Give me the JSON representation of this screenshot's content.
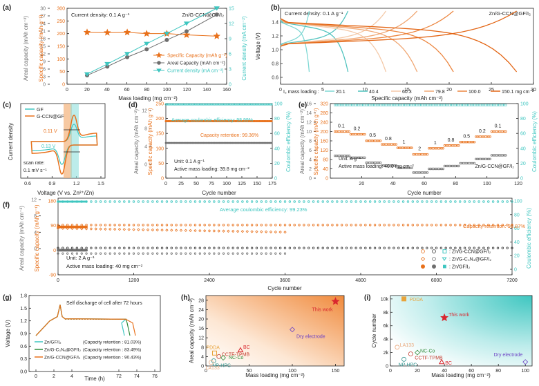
{
  "colors": {
    "orange": "#E8701A",
    "teal": "#3EC6C0",
    "gray": "#6E6E6E",
    "dark": "#333333",
    "red": "#D9272E",
    "purple": "#6B3FC4",
    "green": "#2E8B3A",
    "gold": "#E8A33A"
  },
  "chart_data": [
    {
      "panel": "(a)",
      "type": "line",
      "title": "Current density: 0.1 A g⁻¹",
      "subtitle": "Zn/G-CCN@GF/I₂",
      "xlabel": "Mass loading (mg cm⁻²)",
      "ylabel": "Areal capacity (mAh cm⁻²)",
      "ylabel2": "Specific capacity (mAh g⁻¹)",
      "ylabel3": "Current density (mA cm⁻²)",
      "xlim": [
        0,
        160
      ],
      "ylim": [
        0,
        30
      ],
      "ylim2": [
        0,
        300
      ],
      "ylim3": [
        0,
        15
      ],
      "xticks": [
        "0",
        "20",
        "40",
        "60",
        "80",
        "100",
        "120",
        "140",
        "160"
      ],
      "yticks": [
        "0",
        "3",
        "6",
        "9",
        "12",
        "15",
        "18",
        "21",
        "24",
        "27",
        "30"
      ],
      "yticks2": [
        "0",
        "50",
        "100",
        "150",
        "200",
        "250",
        "300"
      ],
      "yticks3": [
        "0",
        "3",
        "6",
        "9",
        "12",
        "15"
      ],
      "x": [
        20.1,
        40.4,
        60.3,
        79.8,
        100.0,
        119.8,
        150.1
      ],
      "series": [
        {
          "name": "Specific Capacity (mAh g⁻¹)",
          "axis": "y2",
          "values": [
            205,
            204,
            205,
            200,
            200,
            195,
            190
          ]
        },
        {
          "name": "Areal Capacity (mAh cm⁻²)",
          "axis": "y",
          "values": [
            3.5,
            7.0,
            10.7,
            13.8,
            17.5,
            20.9,
            27.5
          ]
        },
        {
          "name": "Current density (mA cm⁻²)",
          "axis": "y3",
          "values": [
            2.0,
            4.0,
            6.0,
            8.0,
            10.0,
            12.0,
            15.0
          ]
        }
      ]
    },
    {
      "panel": "(b)",
      "type": "line",
      "title": "Current density: 0.1 A g⁻¹",
      "subtitle": "Zn/G-CCN@GF/I₂",
      "xlabel": "Specific capacity (mAh cm⁻²)",
      "ylabel": "Voltage (V)",
      "xlim": [
        0,
        30
      ],
      "ylim": [
        0.5,
        1.6
      ],
      "xticks": [
        "0",
        "5",
        "10",
        "15",
        "20",
        "25",
        "30"
      ],
      "yticks": [
        "0.6",
        "0.8",
        "1.0",
        "1.2",
        "1.4"
      ],
      "legend_title": "I₂ mass loading :",
      "series": [
        {
          "name": "20.1",
          "capacity": 3.4
        },
        {
          "name": "40.4",
          "capacity": 8.0
        },
        {
          "name": "60.3",
          "capacity": 12.5
        },
        {
          "name": "79.8",
          "capacity": 16.2
        },
        {
          "name": "100.0",
          "capacity": 20.5
        },
        {
          "name": "150.1 mg cm⁻²",
          "capacity": 28.0
        }
      ]
    },
    {
      "panel": "(c)",
      "type": "line",
      "xlabel": "Voltage (V vs. Zn²⁺/Zn)",
      "ylabel": "Current density",
      "xlim": [
        0.6,
        1.6
      ],
      "xticks": [
        "0.6",
        "0.9",
        "1.2",
        "1.5"
      ],
      "legend": [
        "GF",
        "G-CCN@GF"
      ],
      "annotations": [
        "0.11 V",
        "0.13 V",
        "scan rate:",
        "0.1 mV s⁻¹"
      ],
      "peaks": {
        "oxidation_V": 1.23,
        "reduction_V": 1.07
      }
    },
    {
      "panel": "(d)",
      "type": "line",
      "xlabel": "Cycle number",
      "ylabel": "Areal capacity (mAh cm⁻²)",
      "ylabel2": "Specific capacity (mAh g⁻¹)",
      "ylabel3": "Coulombic efficiency (%)",
      "xlim": [
        0,
        175
      ],
      "ylim2": [
        0,
        250
      ],
      "ylim3": [
        0,
        100
      ],
      "xticks": [
        "0",
        "25",
        "50",
        "75",
        "100",
        "125",
        "150",
        "175"
      ],
      "yticks": [
        "0",
        "4",
        "8",
        "12"
      ],
      "yticks2": [
        "0",
        "50",
        "100",
        "150",
        "200",
        "250"
      ],
      "yticks3": [
        "0",
        "20",
        "40",
        "60",
        "80",
        "100"
      ],
      "annotations": [
        "Average coulombic efficiency: 98.99%",
        "Capacity retention: 99.36%",
        "Unit: 0.1 A g⁻¹",
        "Active mass loading: 39.8 mg cm⁻²"
      ],
      "series": [
        {
          "name": "Specific capacity",
          "flat_value": 191
        },
        {
          "name": "Areal capacity",
          "flat_value": 7.6
        },
        {
          "name": "Coulombic efficiency",
          "flat_value": 99
        }
      ]
    },
    {
      "panel": "(e)",
      "type": "scatter",
      "xlabel": "Cycle number",
      "ylabel": "Areal capacity (mAh cm⁻²)",
      "ylabel2": "Specific capacity (mAh g⁻¹)",
      "ylabel3": "Coulombic efficiency (%)",
      "xlim": [
        0,
        120
      ],
      "ylim": [
        0,
        16
      ],
      "ylim2": [
        0,
        320
      ],
      "ylim3": [
        0,
        100
      ],
      "xticks": [
        "20",
        "40",
        "60",
        "80",
        "100",
        "120"
      ],
      "yticks": [
        "0",
        "2",
        "4",
        "6",
        "8",
        "10",
        "12",
        "14",
        "16"
      ],
      "yticks2": [
        "0",
        "40",
        "80",
        "120",
        "160",
        "200",
        "240",
        "280",
        "320"
      ],
      "yticks3": [
        "0",
        "20",
        "40",
        "60",
        "80",
        "100"
      ],
      "annotations": [
        "Unit: A g⁻¹",
        "Active mass loading: 40.0 mg cm⁻²",
        "Zn/G-CCN@GF/I₂"
      ],
      "rate_labels": [
        "0.1",
        "0.2",
        "0.5",
        "0.8",
        "1",
        "2",
        "1",
        "0.8",
        "0.5",
        "0.2",
        "0.1"
      ],
      "rate_specific_capacity": [
        200,
        188,
        160,
        145,
        130,
        102,
        128,
        140,
        155,
        178,
        200
      ],
      "rate_areal_capacity": [
        4.8,
        4.4,
        3.3,
        2.7,
        2.2,
        1.2,
        2.0,
        2.6,
        3.2,
        4.1,
        4.9
      ]
    },
    {
      "panel": "(f)",
      "type": "scatter",
      "xlabel": "Cycle number",
      "ylabel": "Areal capacity (mAh cm⁻²)",
      "ylabel2": "Specific capacity (mAh g⁻¹)",
      "ylabel3": "Coulombic efficiency (%)",
      "xlim": [
        0,
        7200
      ],
      "xticks": [
        "0",
        "1200",
        "2400",
        "3600",
        "4800",
        "6000",
        "7200"
      ],
      "yticks": [
        "0",
        "4",
        "8",
        "12"
      ],
      "yticks2": [
        "-90",
        "0",
        "90",
        "180"
      ],
      "yticks3": [
        "0",
        "20",
        "40",
        "60",
        "80",
        "100"
      ],
      "annotations": [
        "Average coulombic efficiency: 99.23%",
        "Capacity retention: 98.87%",
        "Unit: 2 A g⁻¹",
        "Active mass loading: 40 mg cm⁻²"
      ],
      "legend": [
        ": Zn/G-CCN@GF/I₂",
        ": Zn/G-C₃N₄@GF/I₂",
        ": Zn/GF/I₂"
      ],
      "series": [
        {
          "name": "Zn/G-CCN@GF/I₂",
          "last_cycle": 7200,
          "specific_capacity": 92,
          "areal_capacity": 3.7
        },
        {
          "name": "Zn/G-C₃N₄@GF/I₂",
          "last_cycle": 3600,
          "specific_capacity": 80,
          "areal_capacity": 3.3
        },
        {
          "name": "Zn/GF/I₂",
          "last_cycle": 450,
          "specific_capacity": 85,
          "areal_capacity": 3.4
        }
      ]
    },
    {
      "panel": "(g)",
      "type": "line",
      "title": "Self discharge of cell after 72 hours",
      "xlabel": "Time (h)",
      "ylabel": "Voltage (V)",
      "ylim": [
        0.0,
        1.8
      ],
      "xticks": [
        "0",
        "2",
        "4",
        "72",
        "74",
        "76"
      ],
      "yticks": [
        "0.0",
        "0.3",
        "0.6",
        "0.9",
        "1.2",
        "1.5",
        "1.8"
      ],
      "series": [
        {
          "name": "Zn/GF/I₂",
          "retention": "(Capacity retention : 81.03%)"
        },
        {
          "name": "Zn/G-C₃N₄@GF/I₂",
          "retention": "(Capacity retention : 83.49%)"
        },
        {
          "name": "Zn/G-CCN@GF/I₂",
          "retention": "(Capacity retention : 90.43%)"
        }
      ]
    },
    {
      "panel": "(h)",
      "type": "scatter",
      "xlabel": "Mass loading (mg cm⁻²)",
      "ylabel": "Areal capacity (mAh cm⁻²)",
      "xlim": [
        0,
        160
      ],
      "ylim": [
        0,
        30
      ],
      "xticks": [
        "0",
        "50",
        "100",
        "150"
      ],
      "yticks": [
        "0",
        "4",
        "8",
        "12",
        "16",
        "20",
        "24",
        "28"
      ],
      "points": [
        {
          "label": "This work",
          "x": 150,
          "y": 27.5
        },
        {
          "label": "Dry electrode",
          "x": 100,
          "y": 15.5
        },
        {
          "label": "BC",
          "x": 40,
          "y": 6.8
        },
        {
          "label": "PDDA",
          "x": 10,
          "y": 5.5
        },
        {
          "label": "CCTF-TPMB",
          "x": 15,
          "y": 4.0
        },
        {
          "label": "NC-Co",
          "x": 20,
          "y": 3.5
        },
        {
          "label": "NP-HPC",
          "x": 9,
          "y": 2.2
        },
        {
          "label": "LA133",
          "x": 6,
          "y": 1.5
        }
      ]
    },
    {
      "panel": "(i)",
      "type": "scatter",
      "xlabel": "Mass loading (mg cm⁻²)",
      "ylabel": "Cycle number",
      "xlim": [
        0,
        105
      ],
      "ylim": [
        0,
        10500
      ],
      "xticks": [
        "0",
        "20",
        "40",
        "60",
        "80",
        "100"
      ],
      "yticks": [
        "0",
        "2k",
        "4k",
        "6k",
        "8k",
        "10k"
      ],
      "points": [
        {
          "label": "PDDA",
          "x": 10,
          "y": 10000
        },
        {
          "label": "This work",
          "x": 40,
          "y": 7200
        },
        {
          "label": "LA133",
          "x": 5,
          "y": 2800
        },
        {
          "label": "NC-Co",
          "x": 20,
          "y": 2000
        },
        {
          "label": "CCTF-TPMB",
          "x": 15,
          "y": 1800
        },
        {
          "label": "NP-HPC",
          "x": 10,
          "y": 1000
        },
        {
          "label": "BC",
          "x": 38,
          "y": 600
        },
        {
          "label": "Dry electrode",
          "x": 100,
          "y": 600
        }
      ]
    }
  ]
}
